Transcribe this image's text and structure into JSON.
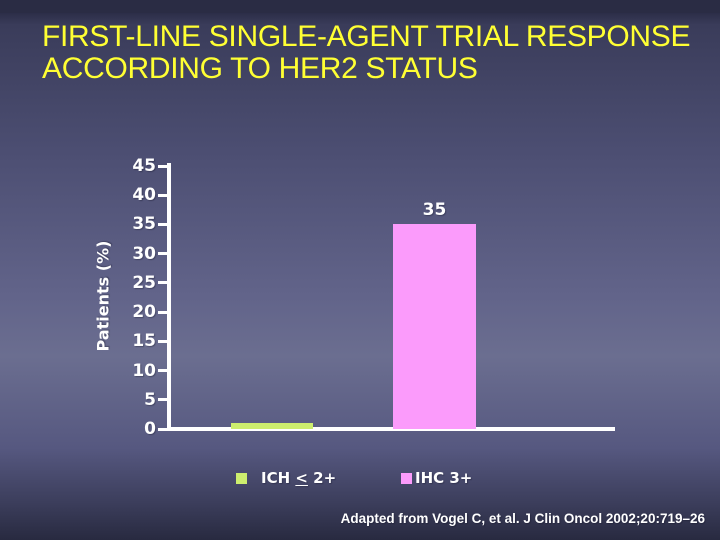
{
  "slide": {
    "title_line1": "FIRST-LINE SINGLE-AGENT TRIAL RESPONSE",
    "title_line2": "ACCORDING TO HER2 STATUS",
    "citation": "Adapted from Vogel C, et al. J Clin Oncol 2002;20:719–26"
  },
  "colors": {
    "title": "#ffff33",
    "text": "#ffffff",
    "background_top": "#23253a",
    "background_mid": "#6b6e90",
    "background_bottom": "#282a40"
  },
  "chart_data": {
    "type": "bar",
    "title": "",
    "categories": [
      "ICH < 2+",
      "IHC 3+"
    ],
    "values": [
      1,
      35
    ],
    "value_labels": [
      "",
      "35"
    ],
    "bar_colors": [
      "#cdee6e",
      "#fb9bfb"
    ],
    "xlabel": "",
    "ylabel": "Patients (%)",
    "ylim": [
      0,
      45
    ],
    "yticks": [
      0,
      5,
      10,
      15,
      20,
      25,
      30,
      35,
      40,
      45
    ],
    "grid": false,
    "legend_position": "bottom",
    "axis_color": "#ffffff",
    "legend": [
      {
        "parts": [
          "ICH ",
          "<",
          " 2+"
        ],
        "underline_part": 1,
        "color": "#cdee6e"
      },
      {
        "parts": [
          "IHC 3+"
        ],
        "color": "#fb9bfb"
      }
    ]
  }
}
